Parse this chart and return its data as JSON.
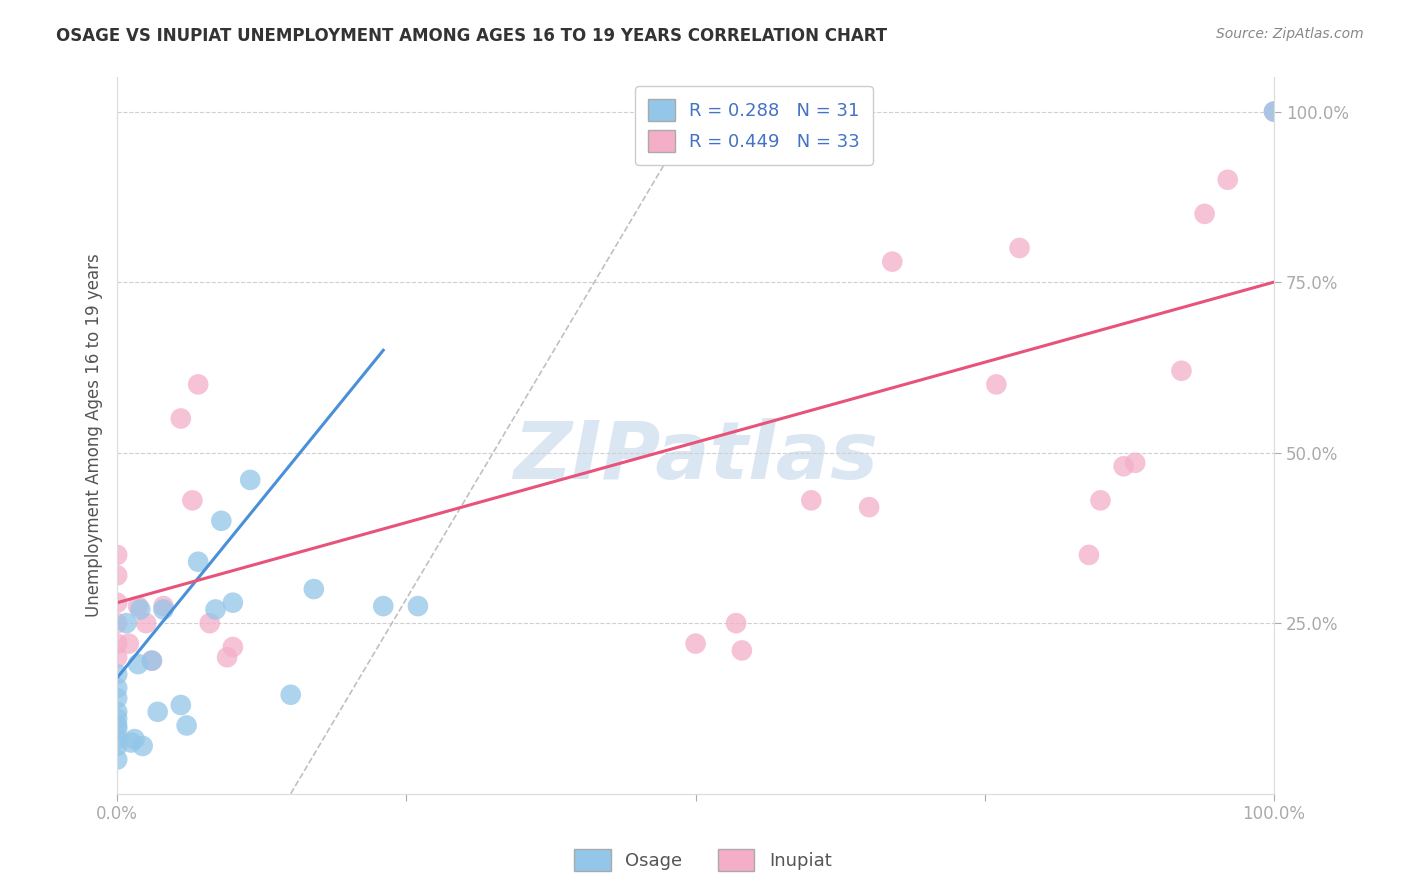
{
  "title": "OSAGE VS INUPIAT UNEMPLOYMENT AMONG AGES 16 TO 19 YEARS CORRELATION CHART",
  "source": "Source: ZipAtlas.com",
  "ylabel": "Unemployment Among Ages 16 to 19 years",
  "xlim": [
    0,
    1.0
  ],
  "ylim": [
    0,
    1.05
  ],
  "osage_color": "#93c6e8",
  "inupiat_color": "#f4aec8",
  "osage_line_color": "#4a90d9",
  "inupiat_line_color": "#e8537a",
  "R_osage": 0.288,
  "N_osage": 31,
  "R_inupiat": 0.449,
  "N_inupiat": 33,
  "watermark_text": "ZIPatlas",
  "osage_x": [
    0.0,
    0.0,
    0.0,
    0.0,
    0.0,
    0.0,
    0.0,
    0.0,
    0.0,
    0.0,
    0.008,
    0.012,
    0.015,
    0.018,
    0.02,
    0.022,
    0.03,
    0.035,
    0.04,
    0.055,
    0.06,
    0.07,
    0.085,
    0.09,
    0.1,
    0.115,
    0.15,
    0.17,
    0.23,
    0.26,
    1.0
  ],
  "osage_y": [
    0.05,
    0.07,
    0.08,
    0.095,
    0.1,
    0.11,
    0.12,
    0.14,
    0.155,
    0.175,
    0.25,
    0.075,
    0.08,
    0.19,
    0.27,
    0.07,
    0.195,
    0.12,
    0.27,
    0.13,
    0.1,
    0.34,
    0.27,
    0.4,
    0.28,
    0.46,
    0.145,
    0.3,
    0.275,
    0.275,
    1.0
  ],
  "inupiat_x": [
    0.0,
    0.0,
    0.0,
    0.0,
    0.0,
    0.0,
    0.01,
    0.018,
    0.025,
    0.03,
    0.04,
    0.055,
    0.065,
    0.07,
    0.08,
    0.095,
    0.1,
    0.5,
    0.535,
    0.54,
    0.6,
    0.65,
    0.67,
    0.76,
    0.78,
    0.84,
    0.85,
    0.87,
    0.88,
    0.92,
    0.94,
    0.96,
    1.0
  ],
  "inupiat_y": [
    0.2,
    0.22,
    0.25,
    0.28,
    0.32,
    0.35,
    0.22,
    0.275,
    0.25,
    0.195,
    0.275,
    0.55,
    0.43,
    0.6,
    0.25,
    0.2,
    0.215,
    0.22,
    0.25,
    0.21,
    0.43,
    0.42,
    0.78,
    0.6,
    0.8,
    0.35,
    0.43,
    0.48,
    0.485,
    0.62,
    0.85,
    0.9,
    1.0
  ],
  "osage_line_x0": 0.0,
  "osage_line_y0": 0.17,
  "osage_line_x1": 0.23,
  "osage_line_y1": 0.65,
  "inupiat_line_x0": 0.0,
  "inupiat_line_y0": 0.28,
  "inupiat_line_x1": 1.0,
  "inupiat_line_y1": 0.75,
  "diag_line_x0": 0.15,
  "diag_line_y0": 0.0,
  "diag_line_x1": 0.5,
  "diag_line_y1": 1.0
}
